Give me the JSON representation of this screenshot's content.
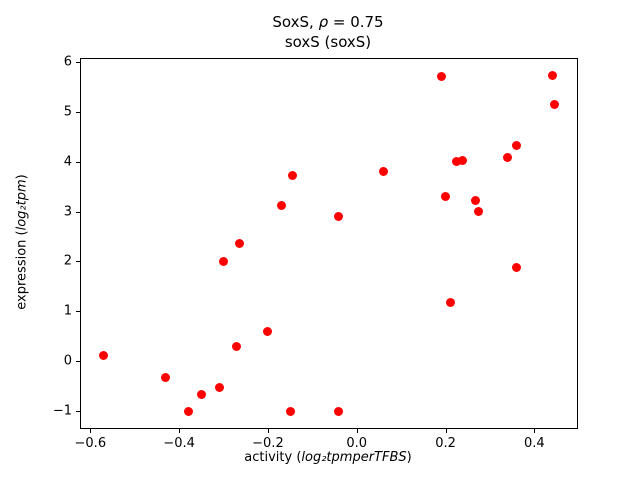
{
  "figure": {
    "title_line1": {
      "prefix": "SoxS, ",
      "italic": "ρ",
      "suffix": " = 0.75"
    },
    "title_line2": "soxS (soxS)",
    "xlabel": {
      "prefix": "activity (",
      "italic": "log₂tpmperTFBS",
      "suffix": ")"
    },
    "ylabel": {
      "prefix": "expression (",
      "italic": "log₂tpm",
      "suffix": ")"
    }
  },
  "chart_data": {
    "type": "scatter",
    "title": "SoxS, ρ = 0.75\nsoxS (soxS)",
    "xlabel": "activity (log₂tpmperTFBS)",
    "ylabel": "expression (log₂tpm)",
    "marker_color": "#ff0000",
    "marker_shape": "circle",
    "grid": false,
    "legend": "none",
    "xlim": [
      -0.621,
      0.496
    ],
    "ylim": [
      -1.336,
      6.056
    ],
    "x_ticks": [
      -0.6,
      -0.4,
      -0.2,
      0.0,
      0.2,
      0.4
    ],
    "y_ticks": [
      -1,
      0,
      1,
      2,
      3,
      4,
      5,
      6
    ],
    "points": [
      [
        -0.57,
        0.12
      ],
      [
        -0.43,
        -0.33
      ],
      [
        -0.38,
        -1.0
      ],
      [
        -0.35,
        -0.67
      ],
      [
        -0.31,
        -0.52
      ],
      [
        -0.3,
        2.0
      ],
      [
        -0.265,
        2.35
      ],
      [
        -0.27,
        0.3
      ],
      [
        -0.2,
        0.6
      ],
      [
        -0.17,
        3.13
      ],
      [
        -0.145,
        3.72
      ],
      [
        -0.15,
        -1.0
      ],
      [
        -0.04,
        2.9
      ],
      [
        -0.04,
        -1.0
      ],
      [
        0.06,
        3.8
      ],
      [
        0.19,
        5.7
      ],
      [
        0.2,
        3.3
      ],
      [
        0.21,
        1.18
      ],
      [
        0.225,
        4.0
      ],
      [
        0.238,
        4.02
      ],
      [
        0.268,
        3.22
      ],
      [
        0.275,
        3.0
      ],
      [
        0.34,
        4.08
      ],
      [
        0.36,
        4.33
      ],
      [
        0.36,
        1.88
      ],
      [
        0.44,
        5.72
      ],
      [
        0.445,
        5.15
      ]
    ]
  }
}
